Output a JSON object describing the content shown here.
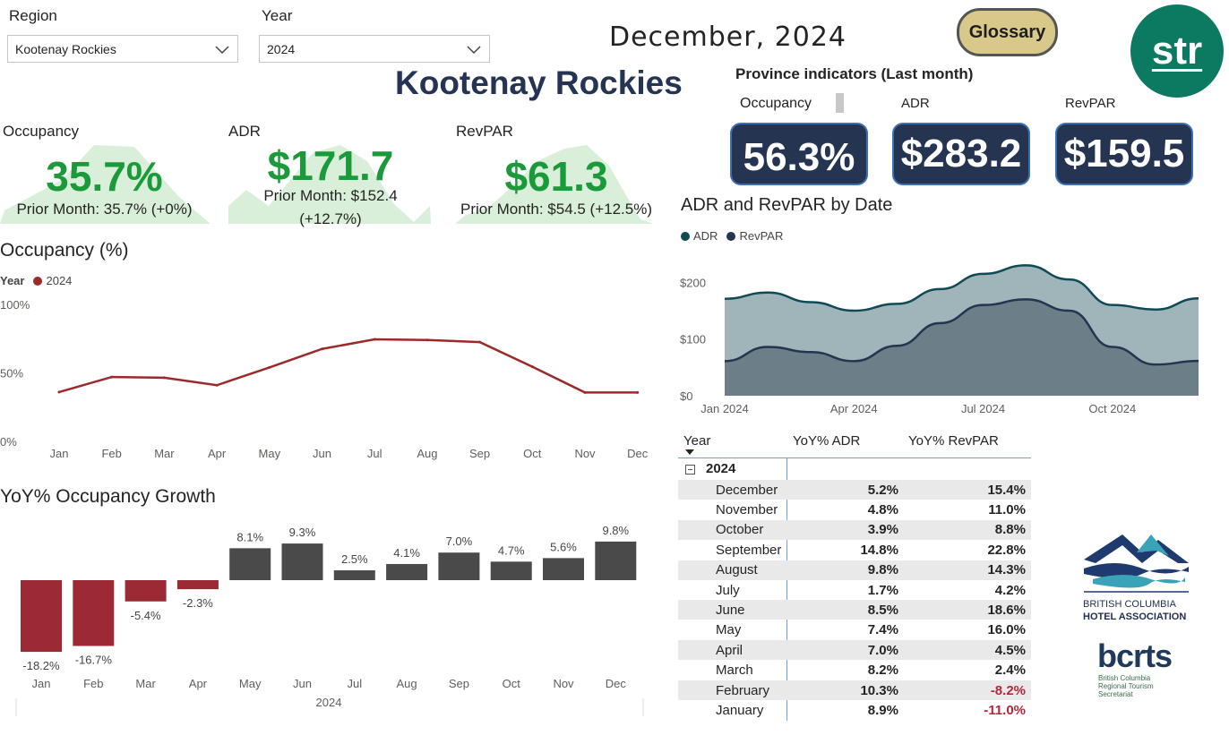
{
  "filters": {
    "region_label": "Region",
    "region_value": "Kootenay Rockies",
    "year_label": "Year",
    "year_value": "2024"
  },
  "header": {
    "month": "December, 2024",
    "region_title": "Kootenay Rockies",
    "glossary_label": "Glossary",
    "logo_text": "str"
  },
  "province": {
    "title": "Province indicators (Last month)",
    "occ_label": "Occupancy",
    "adr_label": "ADR",
    "revpar_label": "RevPAR",
    "occ_value": "56.3%",
    "adr_value": "$283.2",
    "revpar_value": "$159.5"
  },
  "kpis": {
    "occ_label": "Occupancy",
    "occ_value": "35.7%",
    "occ_prior": "Prior Month: 35.7% (+0%)",
    "adr_label": "ADR",
    "adr_value": "$171.7",
    "adr_prior_1": "Prior Month: $152.4",
    "adr_prior_2": "(+12.7%)",
    "revpar_label": "RevPAR",
    "revpar_value": "$61.3",
    "revpar_prior": "Prior Month: $54.5 (+12.5%)"
  },
  "colors": {
    "occupancy_line": "#9b2a2a",
    "neg_bar": "#9b2a35",
    "pos_bar": "#4a4a4a",
    "adr_area": "#9fb5b9",
    "revpar_area": "#6c7f88",
    "kpi_green": "#1a9a3a",
    "navy": "#253450"
  },
  "chart_data": [
    {
      "id": "occupancy",
      "type": "line",
      "title": "Occupancy (%)",
      "legend_title": "Year",
      "series": [
        {
          "name": "2024",
          "values": [
            36,
            47,
            46.5,
            41,
            54,
            67.5,
            74.5,
            74,
            72.5,
            54.5,
            35.7,
            35.7
          ]
        }
      ],
      "categories": [
        "Jan",
        "Feb",
        "Mar",
        "Apr",
        "May",
        "Jun",
        "Jul",
        "Aug",
        "Sep",
        "Oct",
        "Nov",
        "Dec"
      ],
      "y_ticks": [
        "0%",
        "50%",
        "100%"
      ],
      "ylim": [
        0,
        100
      ]
    },
    {
      "id": "yoy-occupancy",
      "type": "bar",
      "title": "YoY% Occupancy Growth",
      "xlabel": "2024",
      "categories": [
        "Jan",
        "Feb",
        "Mar",
        "Apr",
        "May",
        "Jun",
        "Jul",
        "Aug",
        "Sep",
        "Oct",
        "Nov",
        "Dec"
      ],
      "values": [
        -18.2,
        -16.7,
        -5.4,
        -2.3,
        8.1,
        9.3,
        2.5,
        4.1,
        7.0,
        4.7,
        5.6,
        9.8
      ],
      "labels": [
        "-18.2%",
        "-16.7%",
        "-5.4%",
        "-2.3%",
        "8.1%",
        "9.3%",
        "2.5%",
        "4.1%",
        "7.0%",
        "4.7%",
        "5.6%",
        "9.8%"
      ]
    },
    {
      "id": "adr-revpar",
      "type": "area",
      "title": "ADR and RevPAR by Date",
      "series": [
        {
          "name": "ADR",
          "values": [
            171,
            182,
            165,
            150,
            162,
            188,
            215,
            230,
            205,
            160,
            152,
            171.7
          ]
        },
        {
          "name": "RevPAR",
          "values": [
            61,
            86,
            77,
            61,
            88,
            128,
            160,
            170,
            150,
            86,
            55,
            61.3
          ]
        }
      ],
      "x": [
        "Jan 2024",
        "Feb 2024",
        "Mar 2024",
        "Apr 2024",
        "May 2024",
        "Jun 2024",
        "Jul 2024",
        "Aug 2024",
        "Sep 2024",
        "Oct 2024",
        "Nov 2024",
        "Dec 2024"
      ],
      "x_tick_labels": [
        "Jan 2024",
        "Apr 2024",
        "Jul 2024",
        "Oct 2024"
      ],
      "y_ticks": [
        "$0",
        "$100",
        "$200"
      ],
      "ylim": [
        0,
        240
      ]
    }
  ],
  "table": {
    "col_year": "Year",
    "col_adr": "YoY% ADR",
    "col_revpar": "YoY% RevPAR",
    "group": "2024",
    "rows": [
      {
        "month": "December",
        "adr": "5.2%",
        "revpar": "15.4%"
      },
      {
        "month": "November",
        "adr": "4.8%",
        "revpar": "11.0%"
      },
      {
        "month": "October",
        "adr": "3.9%",
        "revpar": "8.8%"
      },
      {
        "month": "September",
        "adr": "14.8%",
        "revpar": "22.8%"
      },
      {
        "month": "August",
        "adr": "9.8%",
        "revpar": "14.3%"
      },
      {
        "month": "July",
        "adr": "1.7%",
        "revpar": "4.2%"
      },
      {
        "month": "June",
        "adr": "8.5%",
        "revpar": "18.6%"
      },
      {
        "month": "May",
        "adr": "7.4%",
        "revpar": "16.0%"
      },
      {
        "month": "April",
        "adr": "7.0%",
        "revpar": "4.5%"
      },
      {
        "month": "March",
        "adr": "8.2%",
        "revpar": "2.4%"
      },
      {
        "month": "February",
        "adr": "10.3%",
        "revpar": "-8.2%"
      },
      {
        "month": "January",
        "adr": "8.9%",
        "revpar": "-11.0%"
      }
    ]
  },
  "logos": {
    "bcha_line1": "BRITISH COLUMBIA",
    "bcha_line2": "HOTEL ASSOCIATION",
    "bcrts_main": "bcrts",
    "bcrts_sub1": "British Columbia",
    "bcrts_sub2": "Regional Tourism",
    "bcrts_sub3": "Secretariat"
  }
}
